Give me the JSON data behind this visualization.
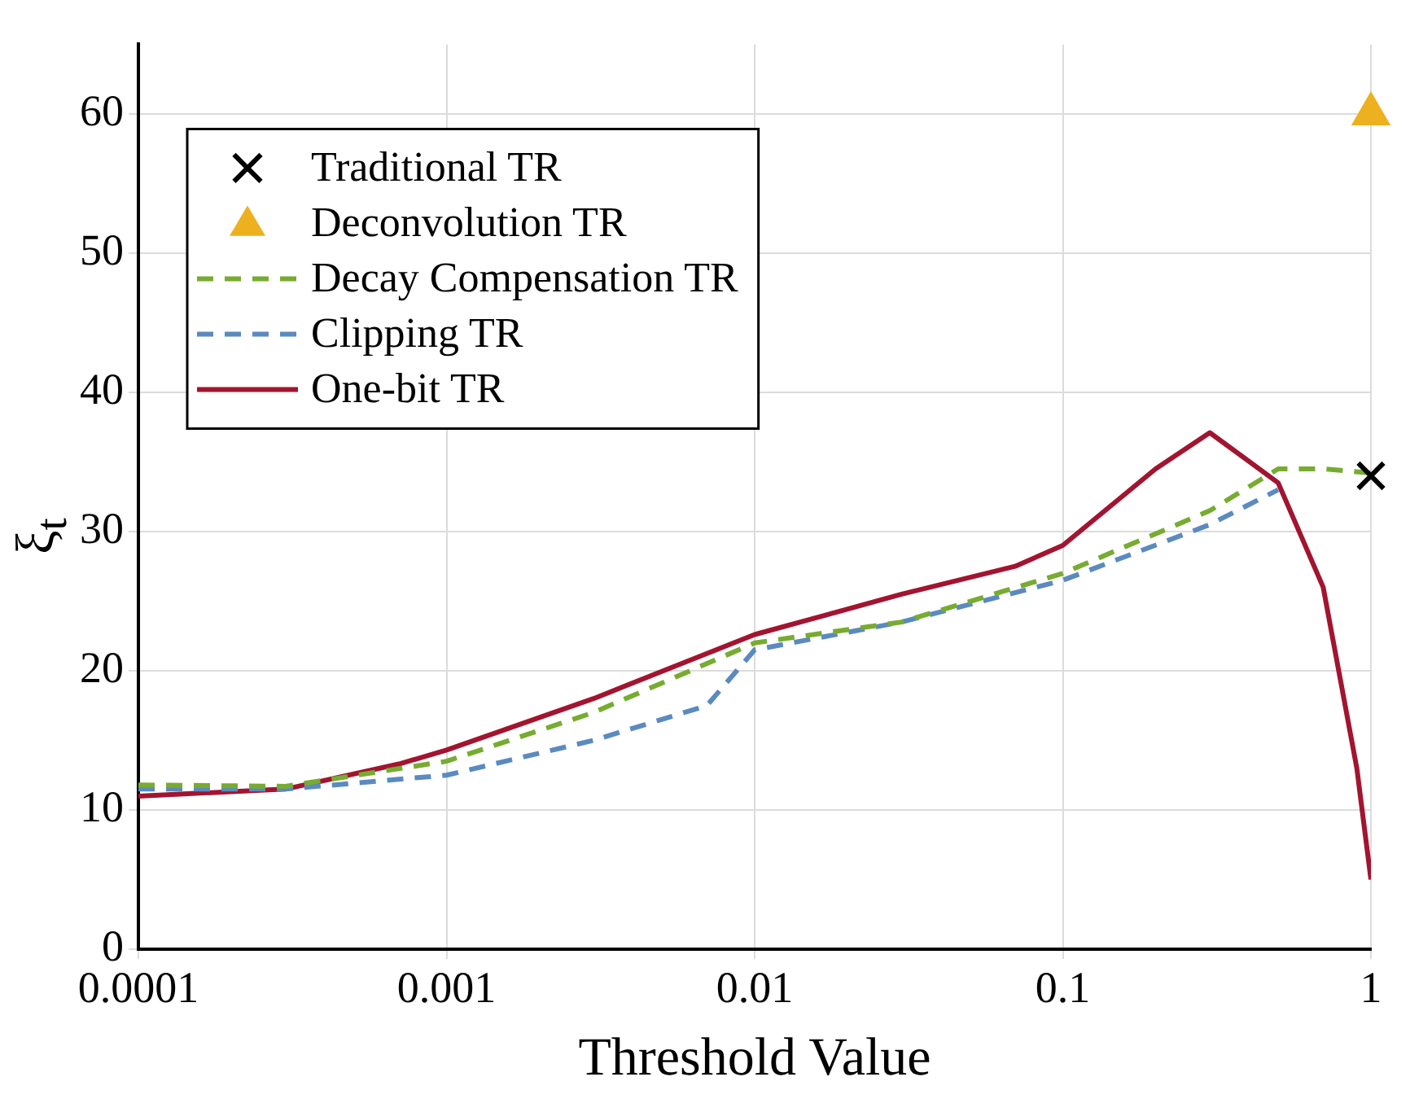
{
  "chart_data": {
    "type": "line",
    "xlabel": "Threshold Value",
    "ylabel": "ξ$_{t}$",
    "log": "x",
    "xlim": [
      0.0001,
      1
    ],
    "xticks": [
      0.0001,
      0.001,
      0.01,
      0.1,
      1
    ],
    "ylim": [
      0,
      65
    ],
    "yticks": [
      0,
      10,
      20,
      30,
      40,
      50,
      60
    ],
    "grid": true,
    "legend": "top left",
    "series": [
      {
        "name": "Traditional TR",
        "type": "scatter",
        "color": "#000000",
        "marker": "cross",
        "x": [
          1
        ],
        "values": [
          34
        ]
      },
      {
        "name": "Deconvolution TR",
        "type": "scatter",
        "color": "#edb120",
        "marker": "triangle",
        "x": [
          1
        ],
        "values": [
          60
        ]
      },
      {
        "name": "Decay Compensation TR",
        "color": "#77ac30",
        "line_style": "dashed",
        "marker": "none",
        "x": [
          0.0001,
          0.0003,
          0.001,
          0.003,
          0.01,
          0.03,
          0.1,
          0.3,
          0.5,
          0.7,
          1
        ],
        "values": [
          11.8,
          11.7,
          13.5,
          17,
          22,
          23.5,
          27,
          31.5,
          34.5,
          34.5,
          34.2
        ]
      },
      {
        "name": "Clipping TR",
        "color": "#5a8ac0",
        "line_style": "dashed",
        "marker": "none",
        "x": [
          0.0001,
          0.0003,
          0.001,
          0.003,
          0.007,
          0.01,
          0.03,
          0.1,
          0.3,
          0.5
        ],
        "values": [
          11.5,
          11.5,
          12.5,
          15,
          17.5,
          21.5,
          23.5,
          26.5,
          30.5,
          33
        ]
      },
      {
        "name": "One-bit TR",
        "color": "#a2142f",
        "line_style": "solid",
        "marker": "none",
        "x": [
          0.0001,
          0.0003,
          0.0007,
          0.001,
          0.003,
          0.01,
          0.03,
          0.07,
          0.1,
          0.2,
          0.3,
          0.5,
          0.7,
          0.9,
          1
        ],
        "values": [
          11,
          11.5,
          13.3,
          14.3,
          18,
          22.6,
          25.5,
          27.5,
          29,
          34.5,
          37.1,
          33.5,
          26,
          13,
          5
        ]
      }
    ]
  }
}
